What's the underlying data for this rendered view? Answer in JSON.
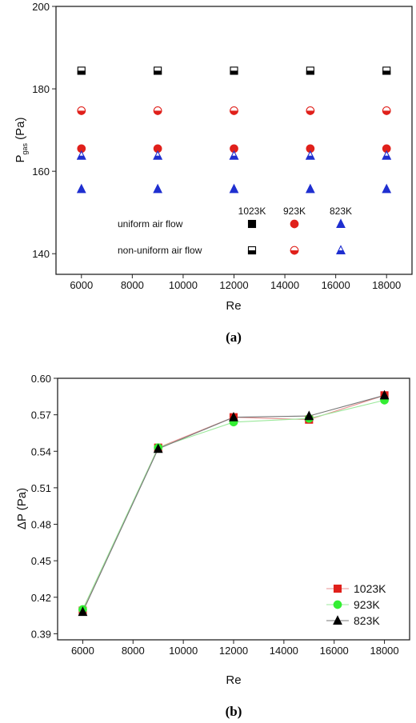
{
  "chart_data": [
    {
      "type": "scatter",
      "caption": "(a)",
      "xlabel": "Re",
      "ylabel_main": "P",
      "ylabel_sub": "gas",
      "ylabel_unit": " (Pa)",
      "xlim": [
        5000,
        19000
      ],
      "ylim": [
        135,
        200
      ],
      "xticks": [
        6000,
        8000,
        10000,
        12000,
        14000,
        16000,
        18000
      ],
      "yticks": [
        140,
        160,
        180,
        200
      ],
      "x": [
        6000,
        9000,
        12000,
        15000,
        18000
      ],
      "colors": {
        "1023K": "#000000",
        "923K": "#e0201b",
        "823K": "#1f2fd0"
      },
      "series": [
        {
          "name": "1023K",
          "flow": "uniform",
          "marker": "square",
          "values": []
        },
        {
          "name": "923K",
          "flow": "uniform",
          "marker": "circle",
          "values": [
            165.5,
            165.5,
            165.5,
            165.5,
            165.5
          ]
        },
        {
          "name": "823K",
          "flow": "uniform",
          "marker": "triangle",
          "values": [
            155.7,
            155.7,
            155.7,
            155.7,
            155.7
          ]
        },
        {
          "name": "1023K",
          "flow": "non-uniform",
          "marker": "square-half",
          "values": [
            184.4,
            184.4,
            184.4,
            184.4,
            184.4
          ]
        },
        {
          "name": "923K",
          "flow": "non-uniform",
          "marker": "circle-half",
          "values": [
            174.7,
            174.7,
            174.7,
            174.7,
            174.7
          ]
        },
        {
          "name": "823K",
          "flow": "non-uniform",
          "marker": "triangle-half",
          "values": [
            163.8,
            163.8,
            163.8,
            163.8,
            163.8
          ]
        }
      ],
      "legend": {
        "temps": [
          "1023K",
          "923K",
          "823K"
        ],
        "row_labels": [
          "uniform air flow",
          "non-uniform air flow"
        ]
      }
    },
    {
      "type": "line",
      "caption": "(b)",
      "xlabel": "Re",
      "ylabel": "ΔP (Pa)",
      "xlim": [
        5000,
        19000
      ],
      "ylim": [
        0.385,
        0.6
      ],
      "xticks": [
        6000,
        8000,
        10000,
        12000,
        14000,
        16000,
        18000
      ],
      "yticks": [
        0.39,
        0.42,
        0.45,
        0.48,
        0.51,
        0.54,
        0.57,
        0.6
      ],
      "ytick_labels": [
        "0.39",
        "0.42",
        "0.45",
        "0.48",
        "0.51",
        "0.54",
        "0.57",
        "0.60"
      ],
      "x": [
        6000,
        9000,
        12000,
        15000,
        18000
      ],
      "legend_position": "bottom-right",
      "series": [
        {
          "name": "1023K",
          "marker": "square",
          "color": "#e0201b",
          "line_color": "#e89090",
          "values": [
            0.409,
            0.543,
            0.568,
            0.566,
            0.586
          ]
        },
        {
          "name": "923K",
          "marker": "circle",
          "color": "#33ee33",
          "line_color": "#9be89b",
          "values": [
            0.41,
            0.543,
            0.564,
            0.567,
            0.582
          ]
        },
        {
          "name": "823K",
          "marker": "triangle",
          "color": "#000000",
          "line_color": "#777777",
          "values": [
            0.408,
            0.542,
            0.568,
            0.569,
            0.586
          ]
        }
      ]
    }
  ]
}
